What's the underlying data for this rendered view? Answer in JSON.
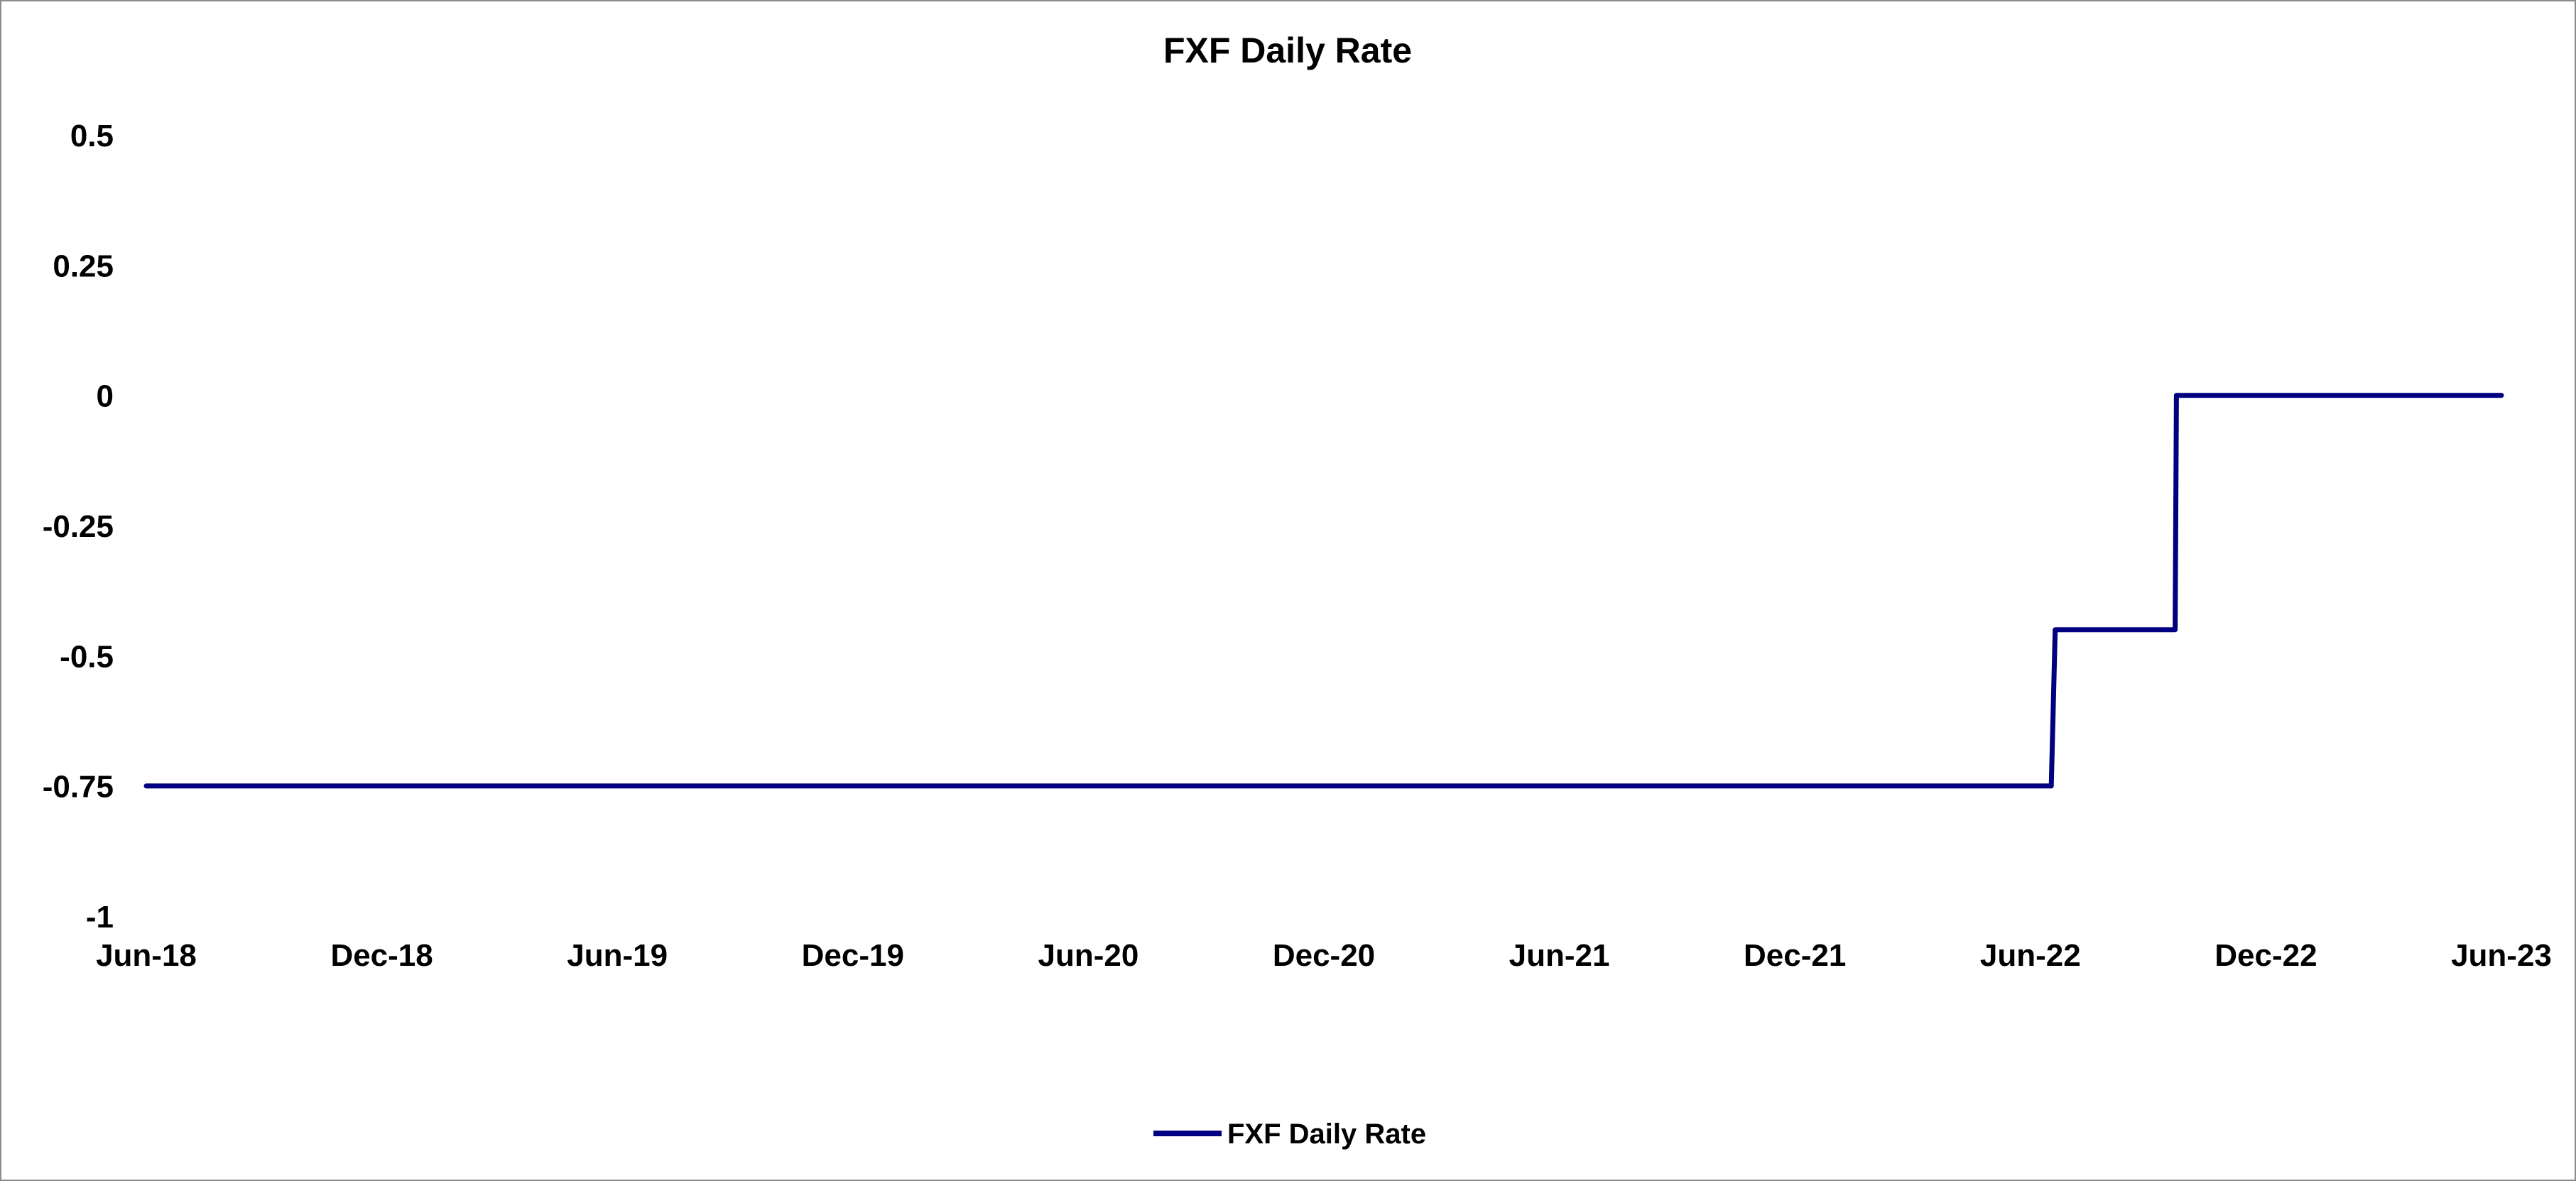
{
  "chart_data": {
    "type": "line",
    "title": "FXF Daily Rate",
    "xlabel": "",
    "ylabel": "",
    "x_ticks": [
      "Jun-18",
      "Dec-18",
      "Jun-19",
      "Dec-19",
      "Jun-20",
      "Dec-20",
      "Jun-21",
      "Dec-21",
      "Jun-22",
      "Dec-22",
      "Jun-23"
    ],
    "y_ticks": [
      "0.5",
      "0.25",
      "0",
      "-0.25",
      "-0.5",
      "-0.75",
      "-1"
    ],
    "xlim": [
      "2018-06-01",
      "2023-06-01"
    ],
    "ylim": [
      -1,
      0.5
    ],
    "grid": false,
    "legend_position": "bottom",
    "series": [
      {
        "name": "FXF Daily Rate",
        "color": "#000080",
        "points": [
          {
            "x": "2018-06-01",
            "y": -0.75
          },
          {
            "x": "2022-06-17",
            "y": -0.75
          },
          {
            "x": "2022-06-20",
            "y": -0.45
          },
          {
            "x": "2022-09-21",
            "y": -0.45
          },
          {
            "x": "2022-09-22",
            "y": 0
          },
          {
            "x": "2023-06-01",
            "y": 0
          }
        ]
      }
    ]
  }
}
